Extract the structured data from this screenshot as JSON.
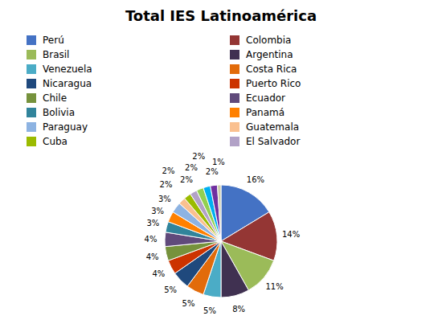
{
  "chart_data": {
    "type": "pie",
    "title": "Total IES Latinoamérica",
    "categories": [
      "Perú",
      "Colombia",
      "Brasil",
      "Argentina",
      "Venezuela",
      "Costa Rica",
      "Nicaragua",
      "Puerto Rico",
      "Chile",
      "Ecuador",
      "Bolivia",
      "Panamá",
      "Paraguay",
      "Guatemala",
      "Cuba",
      "El Salvador",
      null,
      null,
      null,
      null
    ],
    "values": [
      16,
      14,
      11,
      8,
      5,
      5,
      5,
      4,
      4,
      4,
      3,
      3,
      3,
      2,
      2,
      2,
      2,
      2,
      2,
      1
    ],
    "value_labels": [
      "16%",
      "14%",
      "11%",
      "8%",
      "5%",
      "5%",
      "5%",
      "4%",
      "4%",
      "4%",
      "3%",
      "3%",
      "3%",
      "2%",
      "2%",
      "2%",
      "2%",
      "2%",
      "2%",
      "1%"
    ],
    "colors": [
      "#4472C4",
      "#943634",
      "#9BBB59",
      "#403151",
      "#4BACC6",
      "#E26B0A",
      "#1F497D",
      "#CC3300",
      "#76923C",
      "#604A7B",
      "#31849B",
      "#FF8000",
      "#8DB3E2",
      "#FAC090",
      "#9BBB00",
      "#B2A2C7",
      "#92D050",
      "#00B0F0",
      "#7030A0",
      "#CCCCAA"
    ],
    "data_labels": true,
    "legend": "top"
  }
}
